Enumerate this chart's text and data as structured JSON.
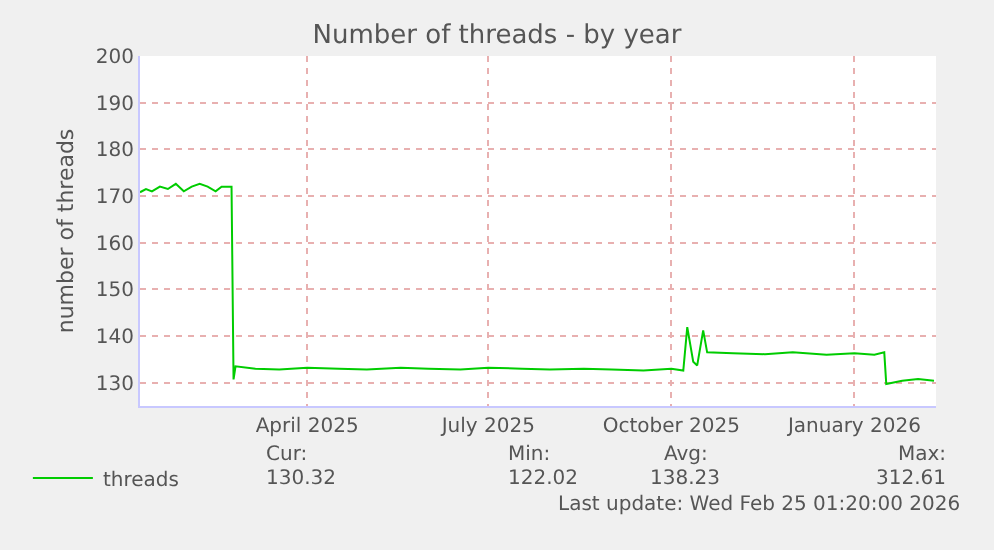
{
  "chart_data": {
    "type": "line",
    "title": "Number of threads - by year",
    "ylabel": "number of threads",
    "x": [
      "2025-01-21",
      "2025-01-24",
      "2025-01-27",
      "2025-01-31",
      "2025-02-04",
      "2025-02-08",
      "2025-02-12",
      "2025-02-16",
      "2025-02-20",
      "2025-02-24",
      "2025-02-28",
      "2025-03-03",
      "2025-03-06",
      "2025-03-08",
      "2025-03-09",
      "2025-03-10",
      "2025-03-20",
      "2025-04-01",
      "2025-04-15",
      "2025-05-01",
      "2025-05-15",
      "2025-06-01",
      "2025-06-15",
      "2025-07-01",
      "2025-07-15",
      "2025-08-01",
      "2025-08-15",
      "2025-09-01",
      "2025-09-15",
      "2025-10-01",
      "2025-10-15",
      "2025-10-21",
      "2025-10-23",
      "2025-10-26",
      "2025-10-28",
      "2025-10-31",
      "2025-11-02",
      "2025-11-15",
      "2025-12-01",
      "2025-12-15",
      "2026-01-01",
      "2026-01-15",
      "2026-01-25",
      "2026-01-30",
      "2026-01-31",
      "2026-02-08",
      "2026-02-16",
      "2026-02-24"
    ],
    "series": [
      {
        "name": "threads",
        "color": "#00cc00",
        "values": [
          170.8,
          171.5,
          171,
          172,
          171.5,
          172.6,
          171,
          172,
          172.6,
          172,
          171,
          172,
          172,
          172,
          130.7,
          133.5,
          133,
          132.8,
          133.2,
          133,
          132.8,
          133.2,
          133,
          132.8,
          133.2,
          133,
          132.8,
          133,
          132.8,
          132.6,
          133,
          132.6,
          141.9,
          134.5,
          133.7,
          141.2,
          136.5,
          136.3,
          136.1,
          136.5,
          136,
          136.3,
          136,
          136.5,
          129.7,
          130.4,
          130.8,
          130.4
        ]
      }
    ],
    "xlim": [
      "2025-01-21",
      "2026-02-25"
    ],
    "xticks": [
      {
        "value": "2025-04-15",
        "label": "April 2025"
      },
      {
        "value": "2025-07-15",
        "label": "July 2025"
      },
      {
        "value": "2025-10-15",
        "label": "October 2025"
      },
      {
        "value": "2026-01-15",
        "label": "January 2026"
      }
    ],
    "ylim": [
      125,
      200
    ],
    "yticks": [
      130,
      140,
      150,
      160,
      170,
      180,
      190,
      200
    ],
    "grid": true,
    "legend": "bottom left",
    "marker": "none",
    "line_style": "solid",
    "annotations": [
      "Cur:",
      "130.32",
      "Min:",
      "122.02",
      "Avg:",
      "138.23",
      "Max:",
      "312.61",
      "Last update: Wed Feb 25 01:20:00 2026"
    ]
  }
}
